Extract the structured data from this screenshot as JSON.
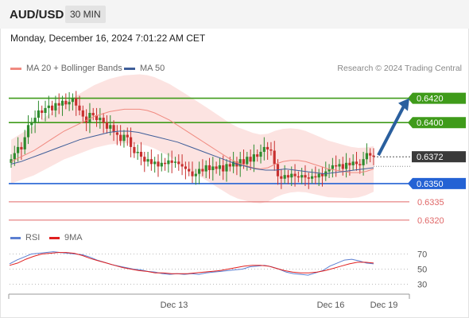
{
  "header": {
    "symbol": "AUD/USD",
    "timeframe": "30 MIN"
  },
  "datetime": "Monday, December 16, 2024 7:01:22 AM CET",
  "legend": {
    "items": [
      {
        "label": "MA 20 + Bollinger Bands",
        "color": "#f08a80"
      },
      {
        "label": "MA 50",
        "color": "#3f5e99"
      }
    ],
    "credit": "Research © 2024 Trading Central"
  },
  "rsi_legend": {
    "items": [
      {
        "label": "RSI",
        "color": "#5c7fd1"
      },
      {
        "label": "9MA",
        "color": "#e02020"
      }
    ]
  },
  "colors": {
    "up": "#2e8b2e",
    "down": "#c8302f",
    "green_level": "#3f9b1a",
    "blue_level": "#2462d4",
    "red_level": "#e06767",
    "arrow": "#2a5f9e",
    "band": "#fbd9d7"
  },
  "chart_data": [
    {
      "type": "candlestick",
      "title": "",
      "ylim": [
        0.6316,
        0.6438
      ],
      "x_ticks": [
        "Dec 13",
        "Dec 16",
        "Dec 19"
      ],
      "levels": [
        {
          "value": 0.642,
          "label": "0.6420",
          "style": "green-box"
        },
        {
          "value": 0.64,
          "label": "0.6400",
          "style": "green-box"
        },
        {
          "value": 0.6372,
          "label": "0.6372",
          "style": "current"
        },
        {
          "value": 0.635,
          "label": "0.6350",
          "style": "blue-box"
        },
        {
          "value": 0.6335,
          "label": "0.6335",
          "style": "red-text"
        },
        {
          "value": 0.632,
          "label": "0.6320",
          "style": "red-text"
        }
      ],
      "close": [
        0.637,
        0.6375,
        0.638,
        0.6378,
        0.6388,
        0.6398,
        0.64,
        0.6404,
        0.641,
        0.6408,
        0.6412,
        0.6414,
        0.641,
        0.6416,
        0.6414,
        0.6418,
        0.6415,
        0.6417,
        0.642,
        0.6414,
        0.641,
        0.6405,
        0.64,
        0.6408,
        0.6406,
        0.6402,
        0.6404,
        0.64,
        0.6395,
        0.6398,
        0.6392,
        0.639,
        0.6385,
        0.639,
        0.6388,
        0.638,
        0.6375,
        0.6376,
        0.6372,
        0.6368,
        0.637,
        0.6366,
        0.6368,
        0.6364,
        0.6367,
        0.6366,
        0.6369,
        0.6367,
        0.6368,
        0.6366,
        0.6364,
        0.6362,
        0.636,
        0.6356,
        0.6358,
        0.6362,
        0.636,
        0.6365,
        0.6361,
        0.6364,
        0.6362,
        0.6365,
        0.636,
        0.6366,
        0.6364,
        0.6368,
        0.6364,
        0.637,
        0.6366,
        0.6372,
        0.6368,
        0.6374,
        0.6372,
        0.6376,
        0.638,
        0.6378,
        0.6377,
        0.6366,
        0.6356,
        0.6354,
        0.6357,
        0.6355,
        0.6358,
        0.6356,
        0.6355,
        0.6357,
        0.6355,
        0.6354,
        0.6356,
        0.6355,
        0.6358,
        0.6356,
        0.636,
        0.6362,
        0.6365,
        0.6364,
        0.6366,
        0.6362,
        0.6367,
        0.6365,
        0.6368,
        0.6366,
        0.6365,
        0.637,
        0.6375,
        0.6373,
        0.6372
      ],
      "ma20": [
        0.6368,
        0.6371,
        0.6374,
        0.6377,
        0.6381,
        0.6385,
        0.6389,
        0.6393,
        0.6396,
        0.6399,
        0.6402,
        0.6405,
        0.6407,
        0.6409,
        0.641,
        0.6411,
        0.6411,
        0.6411,
        0.641,
        0.6408,
        0.6405,
        0.6402,
        0.6398,
        0.6394,
        0.639,
        0.6386,
        0.6382,
        0.6378,
        0.6374,
        0.637,
        0.6367,
        0.6365,
        0.6363,
        0.6362,
        0.6363,
        0.6366,
        0.6368,
        0.6369,
        0.6369,
        0.6368,
        0.6366,
        0.6364,
        0.6362,
        0.6361,
        0.636,
        0.6359,
        0.6359,
        0.636,
        0.6362
      ],
      "ma50": [
        0.6366,
        0.6368,
        0.6371,
        0.6374,
        0.6377,
        0.638,
        0.6383,
        0.6386,
        0.6388,
        0.639,
        0.6392,
        0.6393,
        0.6393,
        0.6392,
        0.639,
        0.6388,
        0.6386,
        0.6384,
        0.6381,
        0.6378,
        0.6375,
        0.6372,
        0.6369,
        0.6366,
        0.6364,
        0.6362,
        0.6361,
        0.6361,
        0.6362,
        0.6361,
        0.636,
        0.6359,
        0.6358,
        0.6359,
        0.636,
        0.6361,
        0.6362,
        0.6363
      ]
    },
    {
      "type": "line",
      "title": "",
      "ylim": [
        20,
        80
      ],
      "y_ticks": [
        70,
        50,
        30
      ],
      "series": [
        {
          "name": "RSI",
          "values": [
            57,
            62,
            66,
            70,
            71,
            72,
            73,
            72,
            71,
            70,
            69,
            66,
            62,
            59,
            56,
            54,
            52,
            50,
            49,
            47,
            46,
            44,
            43,
            44,
            43,
            44,
            43,
            45,
            46,
            47,
            48,
            49,
            50,
            53,
            54,
            55,
            53,
            50,
            46,
            44,
            43,
            42,
            45,
            48,
            54,
            58,
            62,
            63,
            61,
            58,
            57
          ]
        },
        {
          "name": "9MA",
          "values": [
            55,
            58,
            63,
            67,
            70,
            71,
            72,
            72,
            71,
            68,
            64,
            61,
            58,
            55,
            52,
            50,
            48,
            47,
            45,
            45,
            44,
            44,
            44,
            45,
            46,
            47,
            48,
            50,
            52,
            54,
            55,
            55,
            54,
            51,
            48,
            46,
            45,
            45,
            46,
            48,
            51,
            54,
            57,
            59,
            59,
            58
          ]
        }
      ]
    }
  ]
}
